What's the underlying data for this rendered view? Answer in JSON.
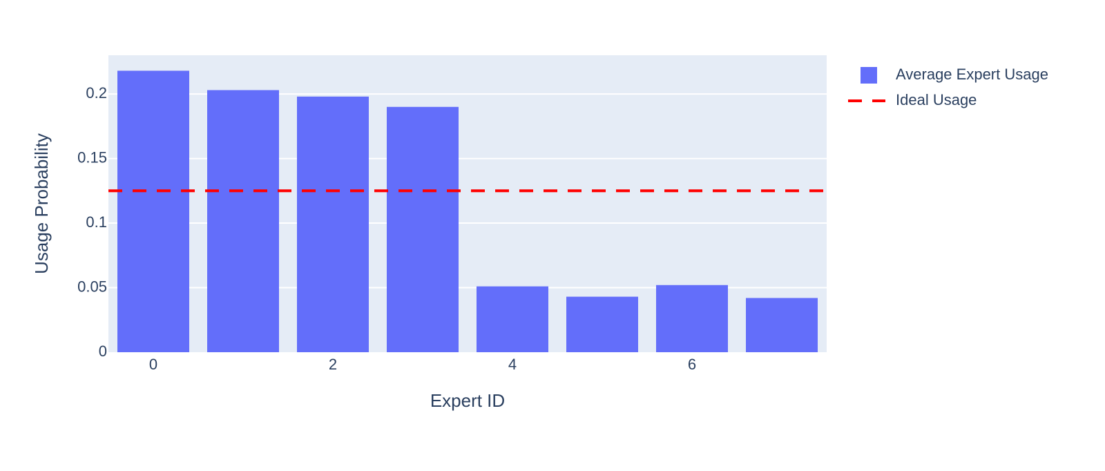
{
  "chart_data": {
    "type": "bar",
    "x_label": "Expert ID",
    "y_label": "Usage Probability",
    "x": [
      0,
      1,
      2,
      3,
      4,
      5,
      6,
      7
    ],
    "xlim": [
      -0.5,
      7.5
    ],
    "xticks": [
      0,
      2,
      4,
      6
    ],
    "ylim": [
      0,
      0.23
    ],
    "yticks": [
      0,
      0.05,
      0.1,
      0.15,
      0.2
    ],
    "grid": true,
    "series": [
      {
        "name": "Average Expert Usage",
        "color": "#636efa",
        "values": [
          0.218,
          0.203,
          0.198,
          0.19,
          0.051,
          0.043,
          0.052,
          0.042
        ]
      }
    ],
    "reference_lines": [
      {
        "name": "Ideal Usage",
        "color": "#ff0000",
        "value": 0.125,
        "dash": true
      }
    ]
  }
}
